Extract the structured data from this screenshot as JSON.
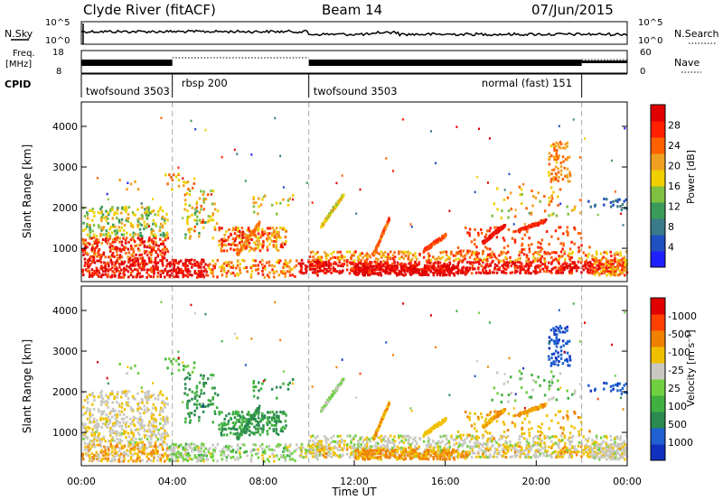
{
  "header": {
    "station": "Clyde River (fitACF)",
    "beam": "Beam 14",
    "date": "07/Jun/2015"
  },
  "left_labels": {
    "nsky": "N.Sky",
    "freq": "Freq.",
    "freq_unit": "[MHz]",
    "cpid": "CPID"
  },
  "right_labels": {
    "nsearch": "N.Search",
    "nave": "Nave"
  },
  "noise_axis": {
    "left": [
      "10^5",
      "10^0"
    ],
    "right": [
      "10^5",
      "10^0"
    ]
  },
  "freq_axis": {
    "left": [
      "18",
      "8"
    ],
    "right": [
      "60",
      "0"
    ]
  },
  "cpid_segments": [
    {
      "label": "twofsound 3503",
      "start": 0,
      "end": 4
    },
    {
      "label": "rbsp 200",
      "start": 4,
      "end": 10
    },
    {
      "label": "twofsound 3503",
      "start": 10,
      "end": 22
    },
    {
      "label": "normal (fast) 151",
      "start": 22,
      "end": 24
    }
  ],
  "cpid_label_override": [
    {
      "label": "twofsound 3503",
      "at": 0.2
    },
    {
      "label": "rbsp 200",
      "at": 4.4
    },
    {
      "label": "twofsound 3503",
      "at": 10.2
    },
    {
      "label": "normal (fast) 151",
      "at": 17.6
    }
  ],
  "chart_data": [
    {
      "type": "heatmap",
      "name": "power",
      "ylabel": "Slant Range [km]",
      "xrange_hours": [
        0,
        24
      ],
      "ylim": [
        180,
        4600
      ],
      "yticks": [
        1000,
        2000,
        3000,
        4000
      ],
      "colorbar_label": "Power [dB]",
      "colorbar_ticks": [
        "4",
        "8",
        "12",
        "16",
        "20",
        "24",
        "28"
      ],
      "colorbar_colors": [
        "#2020ff",
        "#2050c0",
        "#3a7a8a",
        "#3a9a5a",
        "#80c040",
        "#f0d000",
        "#f0a020",
        "#ff6000",
        "#ff2000",
        "#e00000"
      ]
    },
    {
      "type": "heatmap",
      "name": "velocity",
      "xlabel": "Time UT",
      "ylabel": "Slant Range [km]",
      "xrange_hours": [
        0,
        24
      ],
      "xticks": [
        "00:00",
        "04:00",
        "08:00",
        "12:00",
        "16:00",
        "20:00",
        "00:00"
      ],
      "ylim": [
        180,
        4600
      ],
      "yticks": [
        1000,
        2000,
        3000,
        4000
      ],
      "colorbar_label": "Velocity [m s⁻¹]",
      "colorbar_ticks": [
        "1000",
        "500",
        "100",
        "25",
        "-25",
        "-100",
        "-500",
        "-1000"
      ],
      "colorbar_colors": [
        "#1030c0",
        "#2060d0",
        "#2a8a50",
        "#40b040",
        "#70d040",
        "#c8c8c0",
        "#f0c000",
        "#f08000",
        "#ff4000",
        "#e00000"
      ]
    }
  ],
  "mode_change_hours": [
    4,
    10,
    22
  ]
}
